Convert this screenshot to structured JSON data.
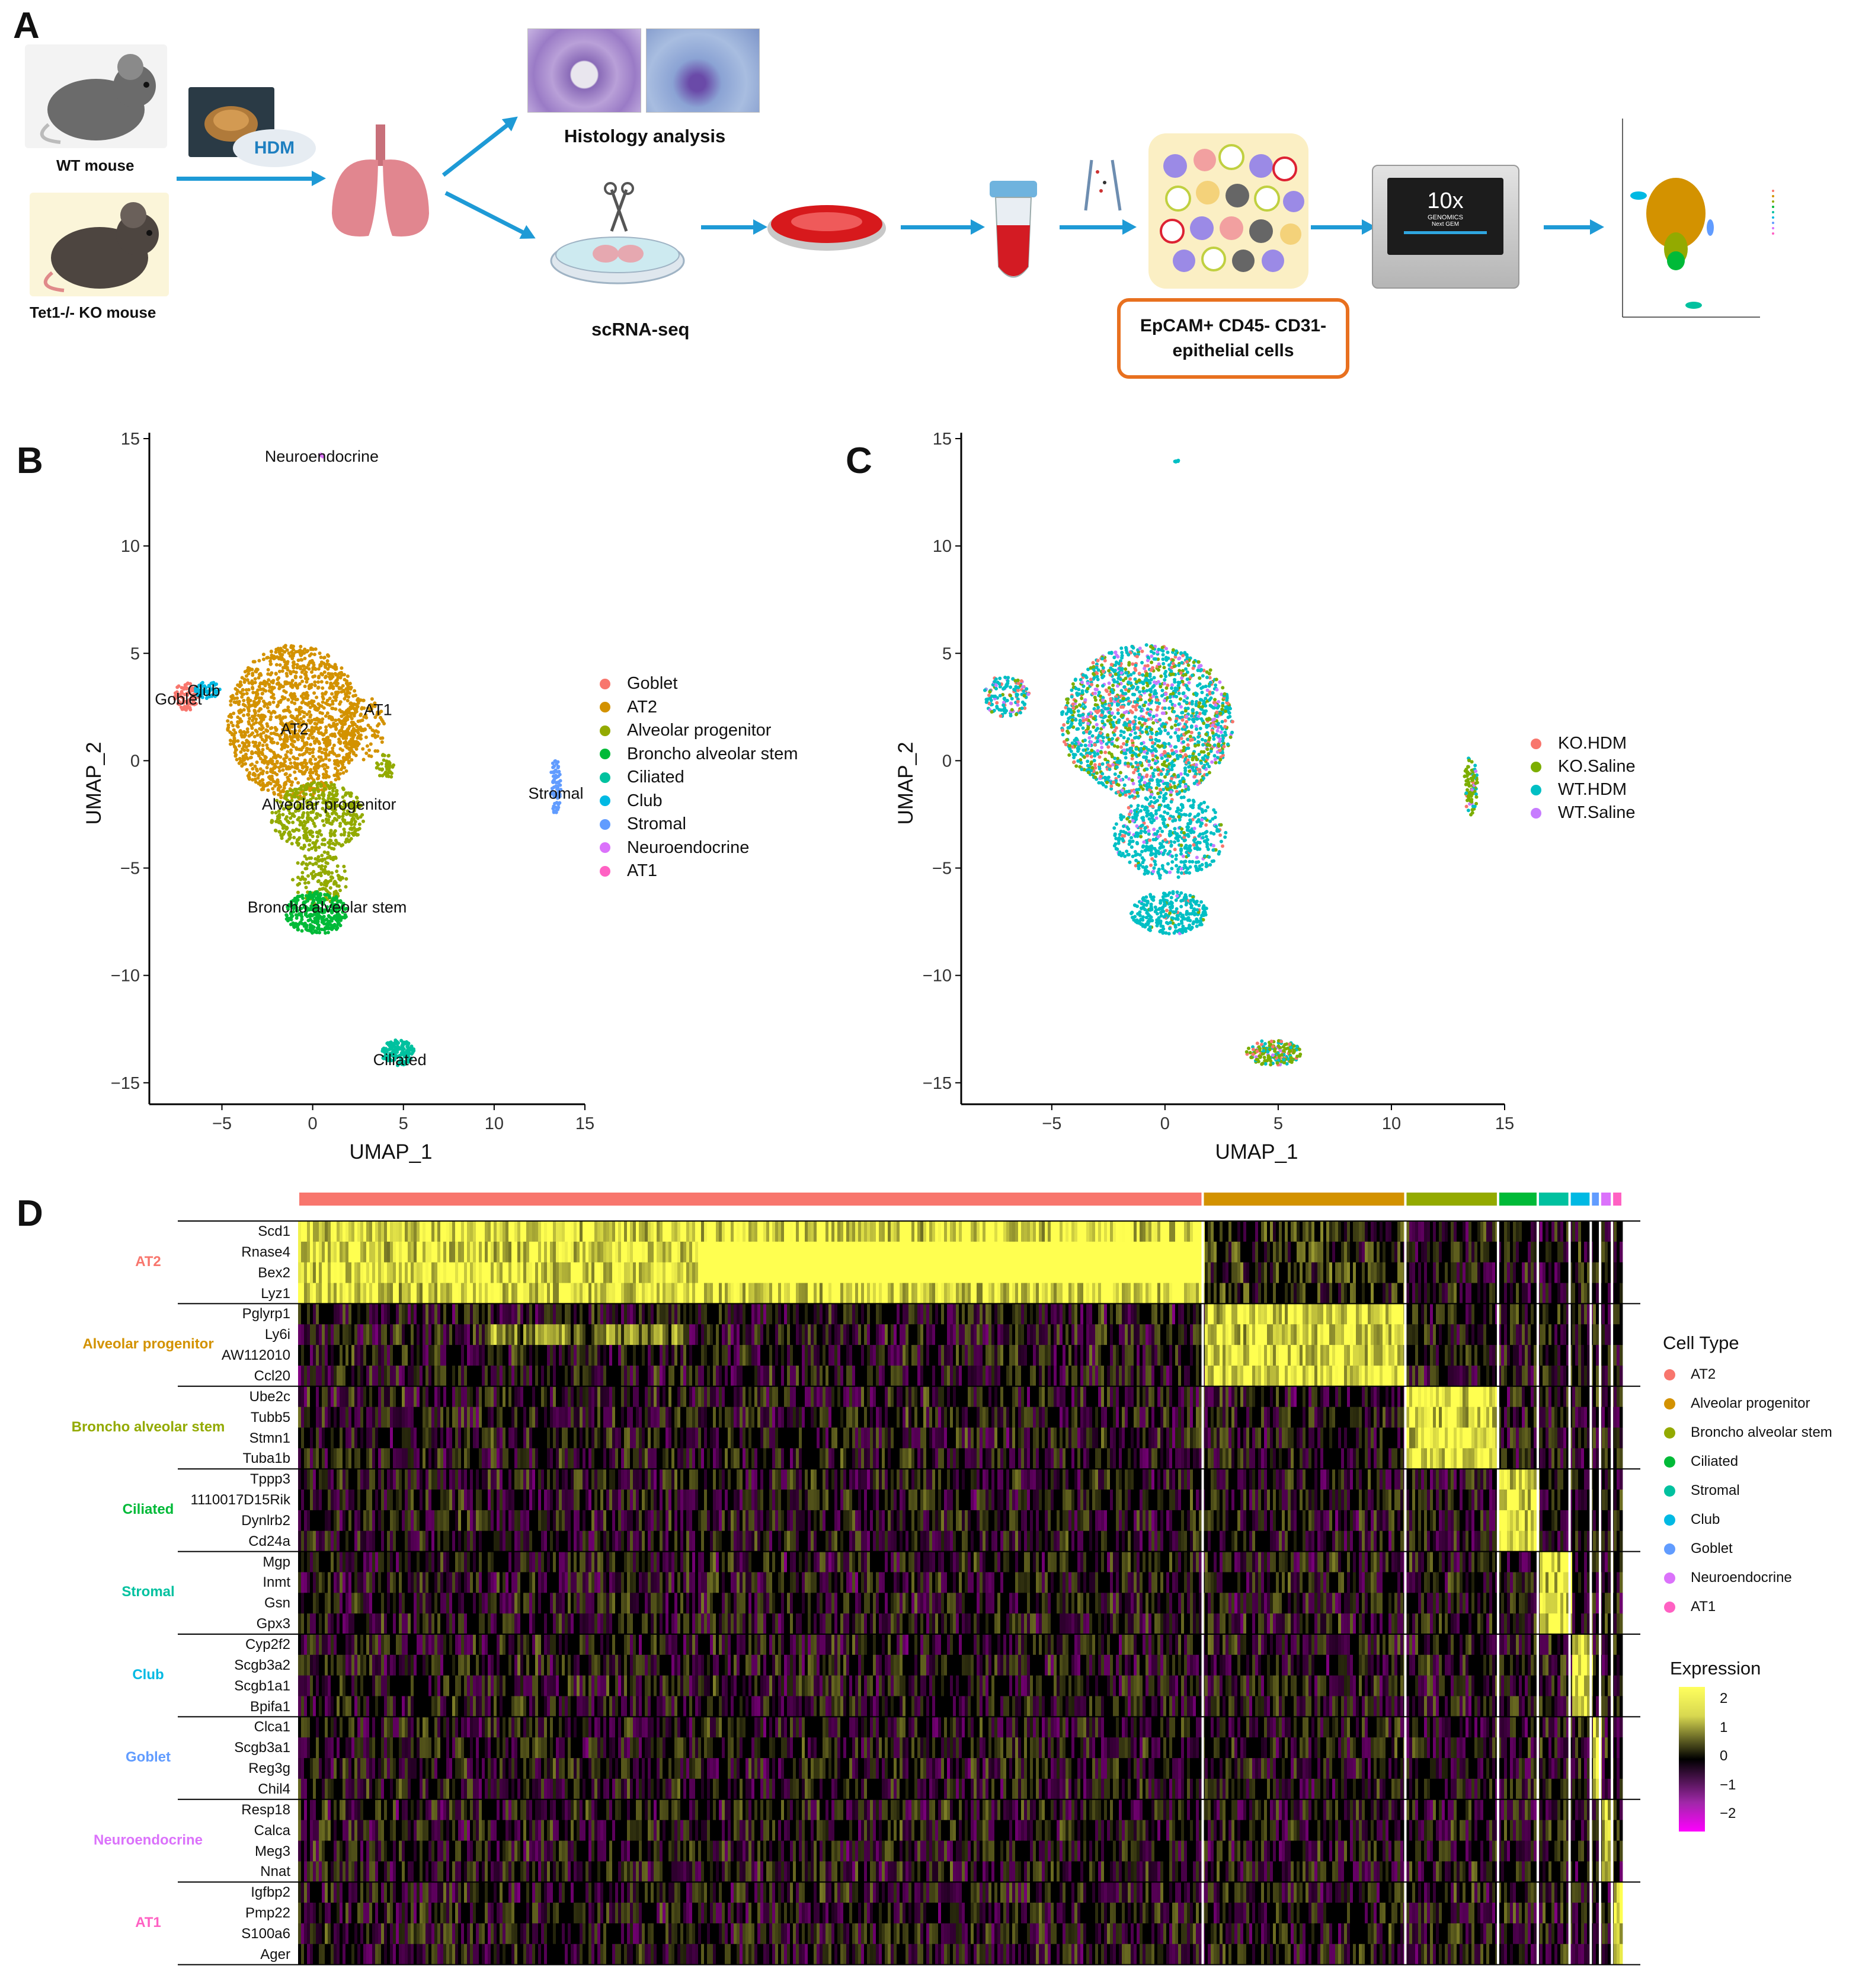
{
  "panels": {
    "a": "A",
    "b": "B",
    "c": "C",
    "d": "D"
  },
  "workflow": {
    "wt_mouse": "WT mouse",
    "ko_mouse": "Tet1-/- KO mouse",
    "hdm": "HDM",
    "histology": "Histology analysis",
    "scrna": "scRNA-seq",
    "epcam": "EpCAM+ CD45- CD31- epithelial cells",
    "tenx_logo": "10x",
    "tenx_sub1": "GENOMICS",
    "tenx_sub2": "Next GEM",
    "colors": {
      "arrow": "#1e9ad6",
      "box_border": "#e8701f"
    }
  },
  "chart_data": [
    {
      "panel": "B",
      "type": "scatter",
      "xlabel": "UMAP_1",
      "ylabel": "UMAP_2",
      "xlim": [
        -9,
        15
      ],
      "ylim": [
        -16,
        15
      ],
      "xticks": [
        -5,
        0,
        5,
        10,
        15
      ],
      "yticks": [
        -15,
        -10,
        -5,
        0,
        5,
        10,
        15
      ],
      "cluster_labels": [
        {
          "text": "Neuroendocrine",
          "x": 0.5,
          "y": 14.2
        },
        {
          "text": "Goblet",
          "x": -7.4,
          "y": 2.9
        },
        {
          "text": "Club",
          "x": -6.0,
          "y": 3.3
        },
        {
          "text": "AT2",
          "x": -1.0,
          "y": 1.5
        },
        {
          "text": "AT1",
          "x": 3.6,
          "y": 2.4
        },
        {
          "text": "Alveolar progenitor",
          "x": 0.9,
          "y": -2.0
        },
        {
          "text": "Stromal",
          "x": 13.4,
          "y": -1.5
        },
        {
          "text": "Broncho alveolar stem",
          "x": 0.8,
          "y": -6.8
        },
        {
          "text": "Ciliated",
          "x": 4.8,
          "y": -13.9
        }
      ],
      "legend": [
        {
          "name": "Goblet",
          "color": "#f8766d"
        },
        {
          "name": "AT2",
          "color": "#d39200"
        },
        {
          "name": "Alveolar progenitor",
          "color": "#93aa00"
        },
        {
          "name": "Broncho alveolar stem",
          "color": "#00ba38"
        },
        {
          "name": "Ciliated",
          "color": "#00c19f"
        },
        {
          "name": "Club",
          "color": "#00b9e3"
        },
        {
          "name": "Stromal",
          "color": "#619cff"
        },
        {
          "name": "Neuroendocrine",
          "color": "#db72fb"
        },
        {
          "name": "AT1",
          "color": "#ff61c3"
        }
      ]
    },
    {
      "panel": "C",
      "type": "scatter",
      "xlabel": "UMAP_1",
      "ylabel": "UMAP_2",
      "xlim": [
        -9,
        15
      ],
      "ylim": [
        -16,
        15
      ],
      "xticks": [
        -5,
        0,
        5,
        10,
        15
      ],
      "yticks": [
        -15,
        -10,
        -5,
        0,
        5,
        10,
        15
      ],
      "legend": [
        {
          "name": "KO.HDM",
          "color": "#f8766d"
        },
        {
          "name": "KO.Saline",
          "color": "#7cae00"
        },
        {
          "name": "WT.HDM",
          "color": "#00bfc4"
        },
        {
          "name": "WT.Saline",
          "color": "#c77cff"
        }
      ]
    },
    {
      "panel": "D",
      "type": "heatmap",
      "title": "",
      "legend_title": "Cell Type",
      "expression_title": "Expression",
      "expression_scale": [
        "2",
        "1",
        "0",
        "−1",
        "−2"
      ],
      "cluster_order": [
        "AT2",
        "Alveolar progenitor",
        "Broncho alveolar stem",
        "Ciliated",
        "Stromal",
        "Club",
        "Goblet",
        "Neuroendocrine",
        "AT1"
      ],
      "cluster_fractions": [
        0.683,
        0.153,
        0.07,
        0.03,
        0.024,
        0.016,
        0.007,
        0.009,
        0.008
      ],
      "cluster_colors": [
        "#f8766d",
        "#d39200",
        "#93aa00",
        "#00ba38",
        "#00c19f",
        "#00b9e3",
        "#619cff",
        "#db72fb",
        "#ff61c3"
      ],
      "gene_groups": [
        {
          "name": "AT2",
          "color": "#f8766d",
          "genes": [
            "Scd1",
            "Rnase4",
            "Bex2",
            "Lyz1"
          ]
        },
        {
          "name": "Alveolar progenitor",
          "color": "#d39200",
          "genes": [
            "Pglyrp1",
            "Ly6i",
            "AW112010",
            "Ccl20"
          ]
        },
        {
          "name": "Broncho alveolar stem",
          "color": "#93aa00",
          "genes": [
            "Ube2c",
            "Tubb5",
            "Stmn1",
            "Tuba1b"
          ]
        },
        {
          "name": "Ciliated",
          "color": "#00ba38",
          "genes": [
            "Tppp3",
            "1110017D15Rik",
            "Dynlrb2",
            "Cd24a"
          ]
        },
        {
          "name": "Stromal",
          "color": "#00c19f",
          "genes": [
            "Mgp",
            "Inmt",
            "Gsn",
            "Gpx3"
          ]
        },
        {
          "name": "Club",
          "color": "#00b9e3",
          "genes": [
            "Cyp2f2",
            "Scgb3a2",
            "Scgb1a1",
            "Bpifa1"
          ]
        },
        {
          "name": "Goblet",
          "color": "#619cff",
          "genes": [
            "Clca1",
            "Scgb3a1",
            "Reg3g",
            "Chil4"
          ]
        },
        {
          "name": "Neuroendocrine",
          "color": "#db72fb",
          "genes": [
            "Resp18",
            "Calca",
            "Meg3",
            "Nnat"
          ]
        },
        {
          "name": "AT1",
          "color": "#ff61c3",
          "genes": [
            "Igfbp2",
            "Pmp22",
            "S100a6",
            "Ager"
          ]
        }
      ]
    }
  ]
}
